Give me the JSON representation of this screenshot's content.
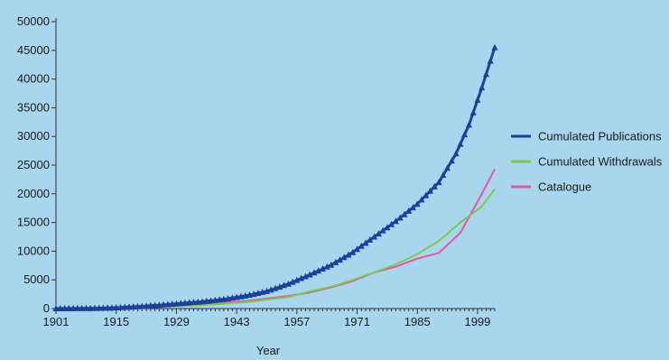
{
  "chart_data": {
    "type": "line",
    "title": "",
    "xlabel": "Year",
    "ylabel": "",
    "xlim": [
      1901,
      2003
    ],
    "ylim": [
      0,
      50000
    ],
    "x_ticks": [
      1901,
      1915,
      1929,
      1943,
      1957,
      1971,
      1985,
      1999
    ],
    "y_ticks": [
      0,
      5000,
      10000,
      15000,
      20000,
      25000,
      30000,
      35000,
      40000,
      45000,
      50000
    ],
    "grid": false,
    "legend_position": "right",
    "series": [
      {
        "name": "Cumulated Publications",
        "color": "#1f3f9a",
        "marker": "triangle",
        "points": [
          [
            1901,
            0
          ],
          [
            1905,
            20
          ],
          [
            1910,
            60
          ],
          [
            1915,
            150
          ],
          [
            1920,
            350
          ],
          [
            1925,
            600
          ],
          [
            1930,
            900
          ],
          [
            1935,
            1200
          ],
          [
            1940,
            1600
          ],
          [
            1945,
            2200
          ],
          [
            1950,
            3000
          ],
          [
            1955,
            4300
          ],
          [
            1960,
            5900
          ],
          [
            1965,
            7600
          ],
          [
            1970,
            9800
          ],
          [
            1975,
            12500
          ],
          [
            1980,
            15200
          ],
          [
            1985,
            18200
          ],
          [
            1990,
            22000
          ],
          [
            1994,
            27000
          ],
          [
            1997,
            32000
          ],
          [
            2000,
            38500
          ],
          [
            2003,
            45500
          ]
        ]
      },
      {
        "name": "Cumulated Withdrawals",
        "color": "#7ec84f",
        "marker": "none",
        "points": [
          [
            1901,
            0
          ],
          [
            1915,
            50
          ],
          [
            1925,
            300
          ],
          [
            1935,
            600
          ],
          [
            1945,
            1100
          ],
          [
            1955,
            2000
          ],
          [
            1960,
            3000
          ],
          [
            1965,
            3800
          ],
          [
            1970,
            5000
          ],
          [
            1975,
            6300
          ],
          [
            1980,
            7700
          ],
          [
            1985,
            9500
          ],
          [
            1990,
            11800
          ],
          [
            1995,
            15000
          ],
          [
            2000,
            17800
          ],
          [
            2003,
            20800
          ]
        ]
      },
      {
        "name": "Catalogue",
        "color": "#e3589e",
        "marker": "none",
        "points": [
          [
            1901,
            0
          ],
          [
            1915,
            60
          ],
          [
            1925,
            350
          ],
          [
            1935,
            700
          ],
          [
            1945,
            1300
          ],
          [
            1955,
            2200
          ],
          [
            1960,
            2800
          ],
          [
            1965,
            3700
          ],
          [
            1970,
            4800
          ],
          [
            1975,
            6300
          ],
          [
            1980,
            7300
          ],
          [
            1985,
            8700
          ],
          [
            1990,
            9700
          ],
          [
            1995,
            13200
          ],
          [
            2000,
            20000
          ],
          [
            2003,
            24300
          ]
        ]
      }
    ]
  }
}
